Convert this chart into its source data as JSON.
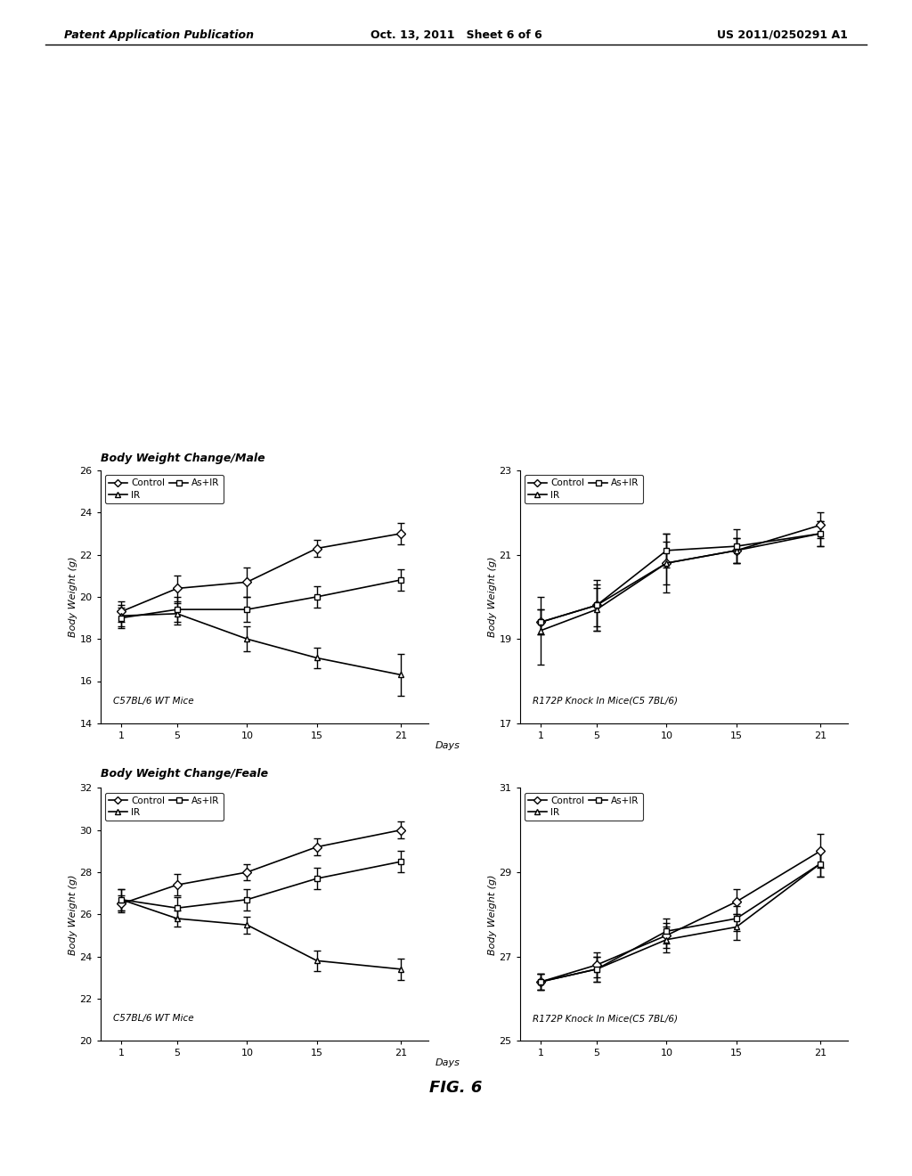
{
  "page_header": {
    "left": "Patent Application Publication",
    "center": "Oct. 13, 2011   Sheet 6 of 6",
    "right": "US 2011/0250291 A1"
  },
  "figure_label": "FIG. 6",
  "plots": [
    {
      "title": "Body Weight Change/Male",
      "subtitle": "C57BL/6 WT Mice",
      "ylabel": "Body Weight (g)",
      "show_days": true,
      "x": [
        1,
        5,
        10,
        15,
        21
      ],
      "ylim": [
        14,
        26
      ],
      "yticks": [
        14,
        16,
        18,
        20,
        22,
        24,
        26
      ],
      "xticks": [
        1,
        5,
        10,
        15,
        21
      ],
      "series": [
        {
          "label": "Control",
          "marker": "D",
          "y": [
            19.3,
            20.4,
            20.7,
            22.3,
            23.0
          ],
          "yerr": [
            0.5,
            0.6,
            0.7,
            0.4,
            0.5
          ]
        },
        {
          "label": "IR",
          "marker": "^",
          "y": [
            19.1,
            19.2,
            18.0,
            17.1,
            16.3
          ],
          "yerr": [
            0.5,
            0.5,
            0.6,
            0.5,
            1.0
          ]
        },
        {
          "label": "As+IR",
          "marker": "s",
          "y": [
            19.0,
            19.4,
            19.4,
            20.0,
            20.8
          ],
          "yerr": [
            0.5,
            0.6,
            0.6,
            0.5,
            0.5
          ]
        }
      ]
    },
    {
      "title": "",
      "subtitle": "R172P Knock In Mice(C5 7BL/6)",
      "ylabel": "Body Weight (g)",
      "show_days": false,
      "x": [
        1,
        5,
        10,
        15,
        21
      ],
      "ylim": [
        17,
        23
      ],
      "yticks": [
        17,
        19,
        21,
        23
      ],
      "xticks": [
        1,
        5,
        10,
        15,
        21
      ],
      "series": [
        {
          "label": "Control",
          "marker": "D",
          "y": [
            19.4,
            19.8,
            20.8,
            21.1,
            21.7
          ],
          "yerr": [
            0.3,
            0.6,
            0.5,
            0.3,
            0.3
          ]
        },
        {
          "label": "IR",
          "marker": "^",
          "y": [
            19.2,
            19.7,
            20.8,
            21.1,
            21.5
          ],
          "yerr": [
            0.8,
            0.5,
            0.7,
            0.3,
            0.3
          ]
        },
        {
          "label": "As+IR",
          "marker": "s",
          "y": [
            19.4,
            19.8,
            21.1,
            21.2,
            21.5
          ],
          "yerr": [
            0.3,
            0.5,
            0.4,
            0.4,
            0.3
          ]
        }
      ]
    },
    {
      "title": "Body Weight Change/Feale",
      "subtitle": "C57BL/6 WT Mice",
      "ylabel": "Body Weight (g)",
      "show_days": true,
      "x": [
        1,
        5,
        10,
        15,
        21
      ],
      "ylim": [
        20,
        32
      ],
      "yticks": [
        20,
        22,
        24,
        26,
        28,
        30,
        32
      ],
      "xticks": [
        1,
        5,
        10,
        15,
        21
      ],
      "series": [
        {
          "label": "Control",
          "marker": "D",
          "y": [
            26.5,
            27.4,
            28.0,
            29.2,
            30.0
          ],
          "yerr": [
            0.4,
            0.5,
            0.4,
            0.4,
            0.4
          ]
        },
        {
          "label": "IR",
          "marker": "^",
          "y": [
            26.7,
            25.8,
            25.5,
            23.8,
            23.4
          ],
          "yerr": [
            0.5,
            0.4,
            0.4,
            0.5,
            0.5
          ]
        },
        {
          "label": "As+IR",
          "marker": "s",
          "y": [
            26.7,
            26.3,
            26.7,
            27.7,
            28.5
          ],
          "yerr": [
            0.5,
            0.5,
            0.5,
            0.5,
            0.5
          ]
        }
      ]
    },
    {
      "title": "",
      "subtitle": "R172P Knock In Mice(C5 7BL/6)",
      "ylabel": "Body Weight (g)",
      "show_days": false,
      "x": [
        1,
        5,
        10,
        15,
        21
      ],
      "ylim": [
        25,
        31
      ],
      "yticks": [
        25,
        27,
        29,
        31
      ],
      "xticks": [
        1,
        5,
        10,
        15,
        21
      ],
      "series": [
        {
          "label": "Control",
          "marker": "D",
          "y": [
            26.4,
            26.8,
            27.5,
            28.3,
            29.5
          ],
          "yerr": [
            0.2,
            0.3,
            0.3,
            0.3,
            0.4
          ]
        },
        {
          "label": "IR",
          "marker": "^",
          "y": [
            26.4,
            26.7,
            27.4,
            27.7,
            29.2
          ],
          "yerr": [
            0.2,
            0.3,
            0.3,
            0.3,
            0.3
          ]
        },
        {
          "label": "As+IR",
          "marker": "s",
          "y": [
            26.4,
            26.7,
            27.6,
            27.9,
            29.2
          ],
          "yerr": [
            0.2,
            0.3,
            0.3,
            0.3,
            0.3
          ]
        }
      ]
    }
  ]
}
